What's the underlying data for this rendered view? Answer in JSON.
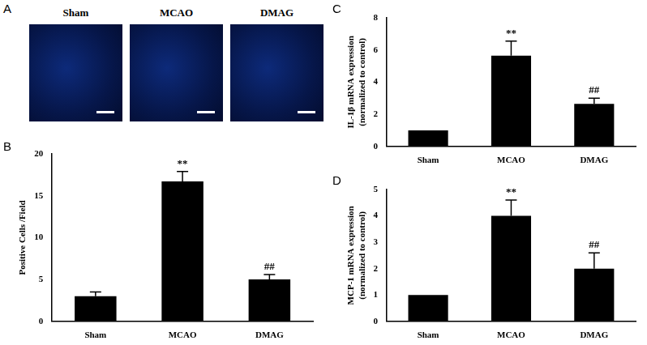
{
  "image_panel": {
    "panel": "A",
    "labels": [
      "Sham",
      "MCAO",
      "DMAG"
    ]
  },
  "chart_data": [
    {
      "panel": "B",
      "type": "bar",
      "categories": [
        "Sham",
        "MCAO",
        "DMAG"
      ],
      "values": [
        3.0,
        16.7,
        5.0
      ],
      "errors": [
        0.5,
        1.2,
        0.6
      ],
      "color": "#000000",
      "ylabel": [
        "Positive Cells /Field"
      ],
      "ylim": [
        0,
        20
      ],
      "yticks": [
        0,
        5,
        10,
        15,
        20
      ],
      "grid": false,
      "annotations": [
        {
          "category": "MCAO",
          "text": "**"
        },
        {
          "category": "DMAG",
          "text": "##"
        }
      ]
    },
    {
      "panel": "C",
      "type": "bar",
      "categories": [
        "Sham",
        "MCAO",
        "DMAG"
      ],
      "values": [
        1.0,
        5.65,
        2.65
      ],
      "errors": [
        0,
        0.9,
        0.35
      ],
      "color": "#000000",
      "ylabel": [
        "IL-1β mRNA expression",
        "(normalized to control)"
      ],
      "ylim": [
        0,
        8
      ],
      "yticks": [
        0,
        2,
        4,
        6,
        8
      ],
      "grid": false,
      "annotations": [
        {
          "category": "MCAO",
          "text": "**"
        },
        {
          "category": "DMAG",
          "text": "##"
        }
      ]
    },
    {
      "panel": "D",
      "type": "bar",
      "categories": [
        "Sham",
        "MCAO",
        "DMAG"
      ],
      "values": [
        1.0,
        4.0,
        2.0
      ],
      "errors": [
        0,
        0.6,
        0.6
      ],
      "color": "#000000",
      "ylabel": [
        "MCP-1 mRNA expression",
        "(normalized to control)"
      ],
      "ylim": [
        0,
        5
      ],
      "yticks": [
        0,
        1,
        2,
        3,
        4,
        5
      ],
      "grid": false,
      "annotations": [
        {
          "category": "MCAO",
          "text": "**"
        },
        {
          "category": "DMAG",
          "text": "##"
        }
      ]
    }
  ]
}
